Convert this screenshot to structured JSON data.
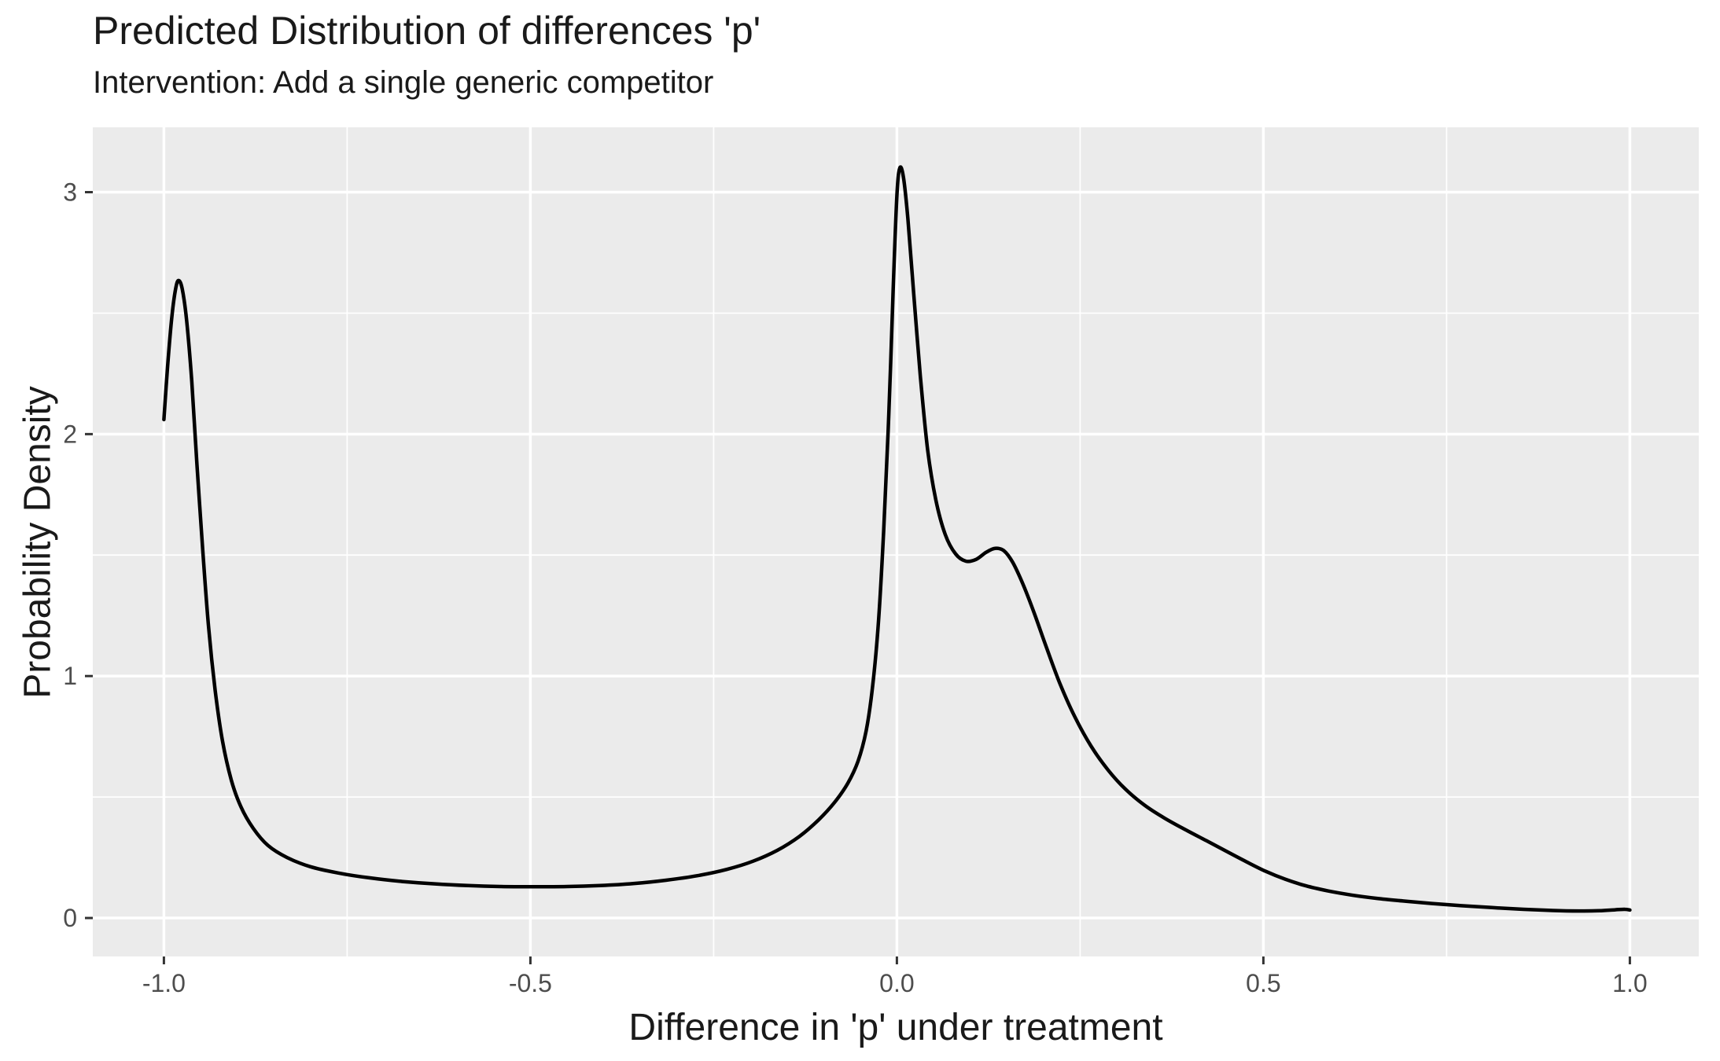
{
  "header": {
    "title": "Predicted Distribution of differences 'p'",
    "subtitle": "Intervention: Add a single generic competitor"
  },
  "chart_data": {
    "type": "line",
    "subtype": "kernel-density",
    "title": "Predicted Distribution of differences 'p'",
    "subtitle": "Intervention: Add a single generic competitor",
    "xlabel": "Difference in 'p' under treatment",
    "ylabel": "Probability Density",
    "xlim": [
      -1.097,
      1.094
    ],
    "ylim": [
      -0.159,
      3.268
    ],
    "grid": true,
    "legend": false,
    "colors": {
      "panel_bg": "#EBEBEB",
      "grid": "#FFFFFF",
      "line": "#000000",
      "tick_text": "#4D4D4D",
      "tick_mark": "#333333",
      "text": "#1A1A1A"
    },
    "x_major_ticks": [
      {
        "value": -1.0,
        "label": "-1.0"
      },
      {
        "value": -0.5,
        "label": "-0.5"
      },
      {
        "value": 0.0,
        "label": "0.0"
      },
      {
        "value": 0.5,
        "label": "0.5"
      },
      {
        "value": 1.0,
        "label": "1.0"
      }
    ],
    "y_major_ticks": [
      {
        "value": 0,
        "label": "0"
      },
      {
        "value": 1,
        "label": "1"
      },
      {
        "value": 2,
        "label": "2"
      },
      {
        "value": 3,
        "label": "3"
      }
    ],
    "x_minor_ticks": [
      -0.75,
      -0.25,
      0.25,
      0.75
    ],
    "y_minor_ticks": [
      0.5,
      1.5,
      2.5
    ],
    "annotations": {
      "left_peak": {
        "x": -0.98,
        "y": 2.63
      },
      "main_peak": {
        "x": 0.005,
        "y": 3.1
      },
      "local_dip": {
        "x": 0.095,
        "y": 1.47
      },
      "shoulder_bump": {
        "x": 0.135,
        "y": 1.53
      },
      "valley": {
        "x": -0.5,
        "y": 0.13
      }
    },
    "series": [
      {
        "name": "density",
        "points": [
          [
            -1.0,
            2.06
          ],
          [
            -0.995,
            2.28
          ],
          [
            -0.989,
            2.49
          ],
          [
            -0.984,
            2.6
          ],
          [
            -0.98,
            2.635
          ],
          [
            -0.975,
            2.6
          ],
          [
            -0.969,
            2.47
          ],
          [
            -0.962,
            2.22
          ],
          [
            -0.955,
            1.88
          ],
          [
            -0.947,
            1.52
          ],
          [
            -0.939,
            1.2
          ],
          [
            -0.93,
            0.94
          ],
          [
            -0.92,
            0.73
          ],
          [
            -0.908,
            0.57
          ],
          [
            -0.895,
            0.46
          ],
          [
            -0.878,
            0.37
          ],
          [
            -0.858,
            0.3
          ],
          [
            -0.832,
            0.25
          ],
          [
            -0.8,
            0.212
          ],
          [
            -0.762,
            0.186
          ],
          [
            -0.72,
            0.166
          ],
          [
            -0.675,
            0.151
          ],
          [
            -0.63,
            0.141
          ],
          [
            -0.585,
            0.134
          ],
          [
            -0.54,
            0.13
          ],
          [
            -0.495,
            0.129
          ],
          [
            -0.45,
            0.13
          ],
          [
            -0.405,
            0.134
          ],
          [
            -0.36,
            0.142
          ],
          [
            -0.315,
            0.156
          ],
          [
            -0.272,
            0.175
          ],
          [
            -0.232,
            0.201
          ],
          [
            -0.196,
            0.235
          ],
          [
            -0.163,
            0.28
          ],
          [
            -0.133,
            0.337
          ],
          [
            -0.107,
            0.405
          ],
          [
            -0.085,
            0.478
          ],
          [
            -0.067,
            0.557
          ],
          [
            -0.053,
            0.648
          ],
          [
            -0.042,
            0.773
          ],
          [
            -0.033,
            0.96
          ],
          [
            -0.025,
            1.23
          ],
          [
            -0.018,
            1.6
          ],
          [
            -0.011,
            2.08
          ],
          [
            -0.005,
            2.6
          ],
          [
            0.0,
            2.985
          ],
          [
            0.004,
            3.1
          ],
          [
            0.009,
            3.06
          ],
          [
            0.015,
            2.89
          ],
          [
            0.023,
            2.58
          ],
          [
            0.032,
            2.24
          ],
          [
            0.042,
            1.935
          ],
          [
            0.053,
            1.73
          ],
          [
            0.066,
            1.585
          ],
          [
            0.08,
            1.505
          ],
          [
            0.094,
            1.475
          ],
          [
            0.108,
            1.482
          ],
          [
            0.122,
            1.512
          ],
          [
            0.134,
            1.528
          ],
          [
            0.146,
            1.518
          ],
          [
            0.158,
            1.47
          ],
          [
            0.172,
            1.38
          ],
          [
            0.188,
            1.255
          ],
          [
            0.205,
            1.11
          ],
          [
            0.223,
            0.965
          ],
          [
            0.243,
            0.83
          ],
          [
            0.265,
            0.71
          ],
          [
            0.288,
            0.612
          ],
          [
            0.312,
            0.532
          ],
          [
            0.338,
            0.466
          ],
          [
            0.365,
            0.413
          ],
          [
            0.393,
            0.366
          ],
          [
            0.422,
            0.32
          ],
          [
            0.45,
            0.275
          ],
          [
            0.477,
            0.232
          ],
          [
            0.503,
            0.193
          ],
          [
            0.53,
            0.16
          ],
          [
            0.558,
            0.133
          ],
          [
            0.588,
            0.112
          ],
          [
            0.62,
            0.095
          ],
          [
            0.655,
            0.081
          ],
          [
            0.692,
            0.07
          ],
          [
            0.73,
            0.06
          ],
          [
            0.77,
            0.051
          ],
          [
            0.812,
            0.043
          ],
          [
            0.855,
            0.036
          ],
          [
            0.895,
            0.031
          ],
          [
            0.93,
            0.029
          ],
          [
            0.958,
            0.03
          ],
          [
            0.98,
            0.034
          ],
          [
            0.993,
            0.036
          ],
          [
            1.0,
            0.033
          ]
        ]
      }
    ]
  }
}
